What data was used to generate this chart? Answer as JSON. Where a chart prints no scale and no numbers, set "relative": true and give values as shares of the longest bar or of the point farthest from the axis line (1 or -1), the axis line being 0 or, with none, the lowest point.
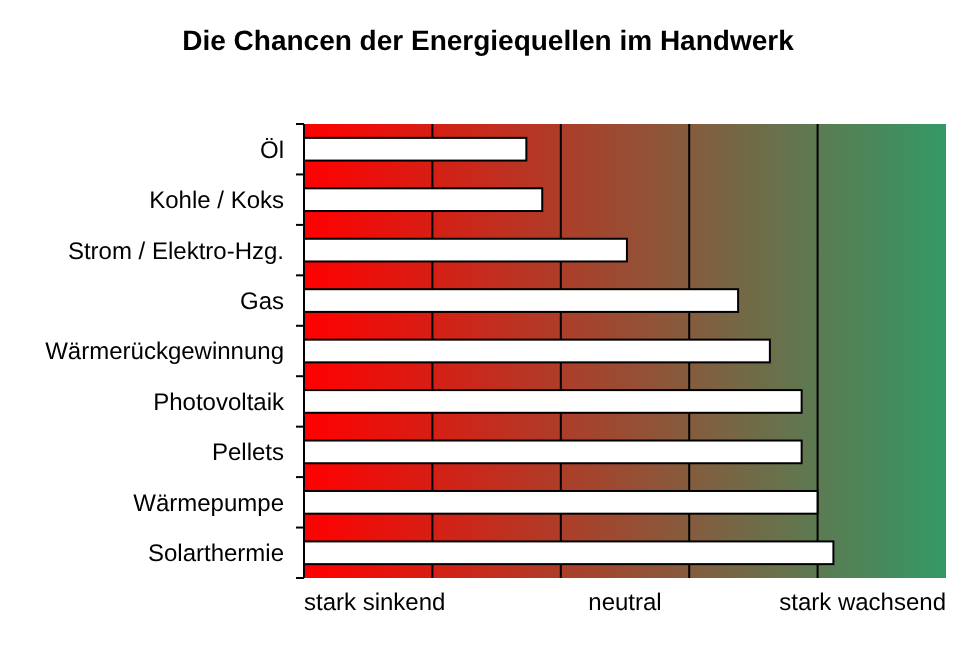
{
  "chart_data": {
    "type": "bar",
    "orientation": "horizontal",
    "relative": true,
    "title": "Die Chancen der Energiequellen im Handwerk",
    "categories": [
      "Öl",
      "Kohle / Koks",
      "Strom / Elektro-Hzg.",
      "Gas",
      "Wärmerückgewinnung",
      "Photovoltaik",
      "Pellets",
      "Wärmepumpe",
      "Solarthermie"
    ],
    "values": [
      0.42,
      0.45,
      0.61,
      0.82,
      0.88,
      0.94,
      0.94,
      0.97,
      1
    ],
    "color": "#ffffff",
    "grid": "x",
    "annotations": [
      "stark sinkend",
      "neutral",
      "stark wachsend"
    ]
  }
}
